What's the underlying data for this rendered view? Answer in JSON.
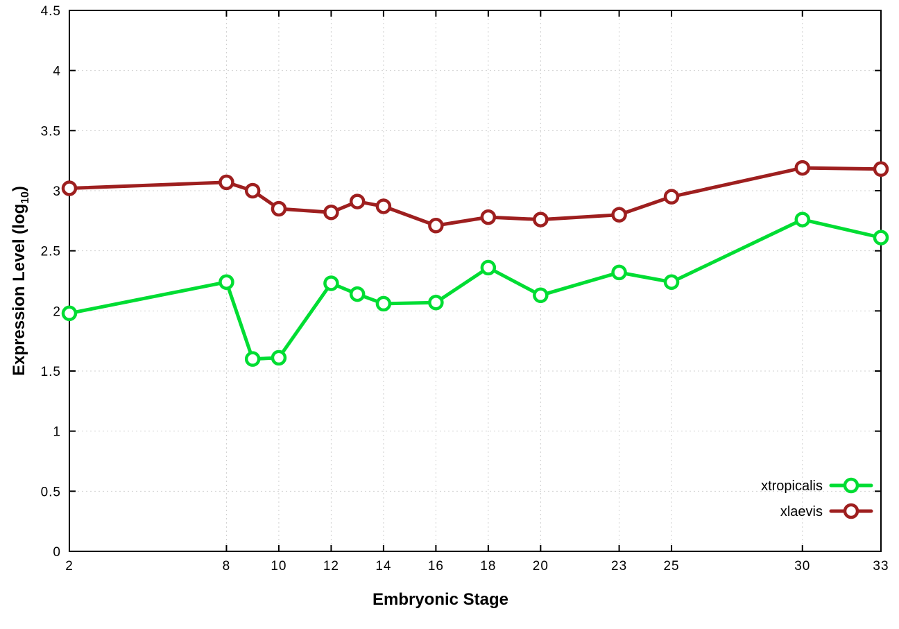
{
  "chart_data": {
    "type": "line",
    "title": "",
    "xlabel": "Embryonic Stage",
    "ylabel_prefix": "Expression Level (log",
    "ylabel_sub": "10",
    "ylabel_suffix": ")",
    "xlim": [
      2,
      33
    ],
    "ylim": [
      0,
      4.5
    ],
    "y_tick_step": 0.5,
    "x_ticks": [
      2,
      8,
      10,
      12,
      14,
      16,
      18,
      20,
      23,
      25,
      30,
      33
    ],
    "y_ticks": [
      0,
      0.5,
      1,
      1.5,
      2,
      2.5,
      3,
      3.5,
      4,
      4.5
    ],
    "grid": true,
    "legend_position": "bottom-right",
    "x": [
      2,
      8,
      9,
      10,
      12,
      13,
      14,
      16,
      18,
      20,
      23,
      25,
      30,
      33
    ],
    "series": [
      {
        "name": "xtropicalis",
        "color": "#00dd33",
        "values": [
          1.98,
          2.24,
          1.6,
          1.61,
          2.23,
          2.14,
          2.06,
          2.07,
          2.36,
          2.13,
          2.32,
          2.24,
          2.76,
          2.61
        ]
      },
      {
        "name": "xlaevis",
        "color": "#9e1f1f",
        "values": [
          3.02,
          3.07,
          3.0,
          2.85,
          2.82,
          2.91,
          2.87,
          2.71,
          2.78,
          2.76,
          2.8,
          2.95,
          3.19,
          3.18
        ]
      }
    ]
  },
  "layout_colors": {
    "background": "#ffffff",
    "grid": "#d0d0d0",
    "border": "#000000"
  }
}
